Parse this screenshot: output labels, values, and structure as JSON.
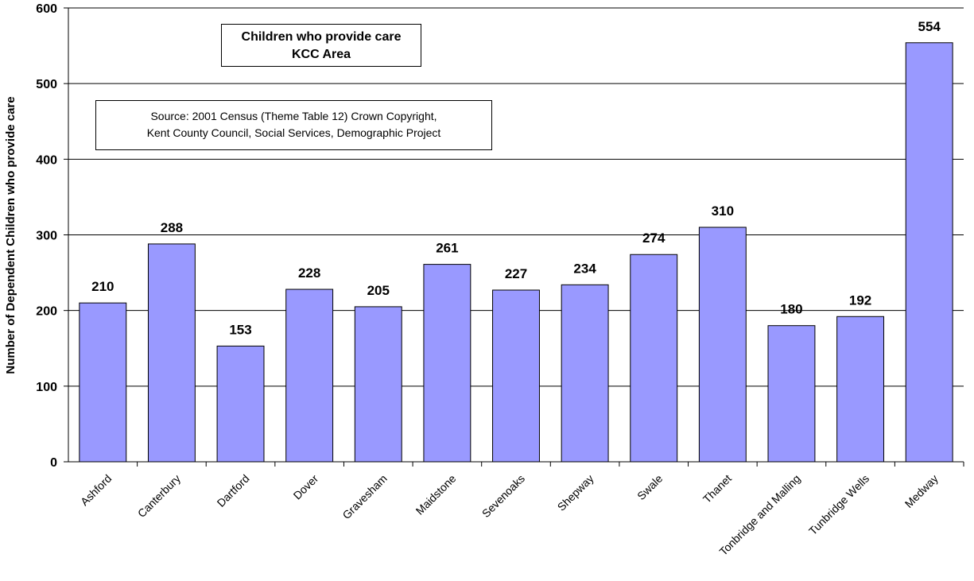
{
  "chart_data": {
    "type": "bar",
    "title": "Children who provide care",
    "subtitle": "KCC Area",
    "source_lines": [
      "Source: 2001 Census (Theme Table 12) Crown Copyright,",
      "Kent County Council, Social Services, Demographic Project"
    ],
    "xlabel": "",
    "ylabel": "Number of Dependent Children who provide care",
    "ylim": [
      0,
      600
    ],
    "yticks": [
      0,
      100,
      200,
      300,
      400,
      500,
      600
    ],
    "grid": true,
    "bar_color": "#9999ff",
    "categories": [
      "Ashford",
      "Canterbury",
      "Dartford",
      "Dover",
      "Gravesham",
      "Maidstone",
      "Sevenoaks",
      "Shepway",
      "Swale",
      "Thanet",
      "Tonbridge and Malling",
      "Tunbridge Wells",
      "Medway"
    ],
    "values": [
      210,
      288,
      153,
      228,
      205,
      261,
      227,
      234,
      274,
      310,
      180,
      192,
      554
    ]
  }
}
